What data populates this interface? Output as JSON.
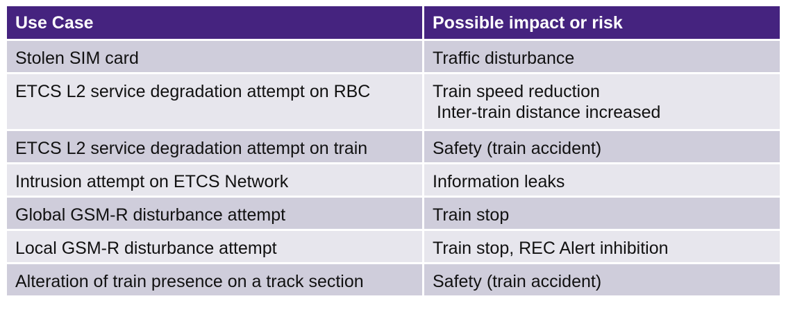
{
  "headers": [
    "Use Case",
    "Possible impact or risk"
  ],
  "rows": [
    {
      "use_case": "Stolen SIM card",
      "impact": [
        "Traffic disturbance"
      ]
    },
    {
      "use_case": "ETCS L2 service degradation attempt on RBC",
      "impact": [
        "Train speed reduction",
        "Inter-train distance increased"
      ]
    },
    {
      "use_case": "ETCS L2 service degradation attempt on train",
      "impact": [
        "Safety (train accident)"
      ]
    },
    {
      "use_case": "Intrusion attempt on ETCS Network",
      "impact": [
        "Information leaks"
      ]
    },
    {
      "use_case": "Global GSM-R disturbance attempt",
      "impact": [
        "Train stop"
      ]
    },
    {
      "use_case": "Local GSM-R disturbance attempt",
      "impact": [
        "Train stop, REC Alert inhibition"
      ]
    },
    {
      "use_case": "Alteration of train presence on a track section",
      "impact": [
        "Safety (train accident)"
      ]
    }
  ],
  "colors": {
    "header": "#45237f",
    "row_odd": "#cfcddb",
    "row_even": "#e7e6ed"
  }
}
